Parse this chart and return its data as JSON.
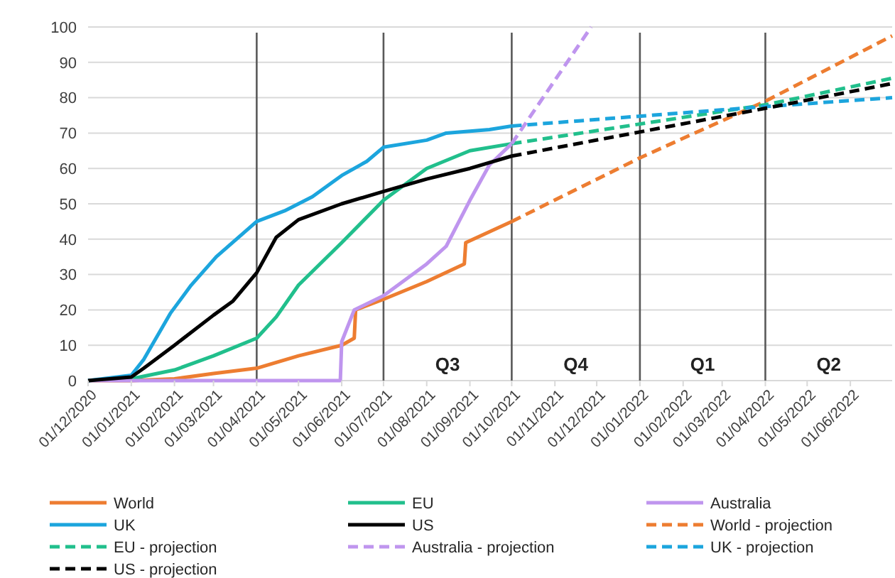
{
  "chart_data": {
    "type": "line",
    "xlim": [
      "2020-12-01",
      "2022-07-01"
    ],
    "ylim": [
      0,
      100
    ],
    "yticks": [
      0,
      10,
      20,
      30,
      40,
      50,
      60,
      70,
      80,
      90,
      100
    ],
    "xticks": [
      {
        "value": "2020-12-01",
        "label": "01/12/2020"
      },
      {
        "value": "2021-01-01",
        "label": "01/01/2021"
      },
      {
        "value": "2021-02-01",
        "label": "01/02/2021"
      },
      {
        "value": "2021-03-01",
        "label": "01/03/2021"
      },
      {
        "value": "2021-04-01",
        "label": "01/04/2021"
      },
      {
        "value": "2021-05-01",
        "label": "01/05/2021"
      },
      {
        "value": "2021-06-01",
        "label": "01/06/2021"
      },
      {
        "value": "2021-07-01",
        "label": "01/07/2021"
      },
      {
        "value": "2021-08-01",
        "label": "01/08/2021"
      },
      {
        "value": "2021-09-01",
        "label": "01/09/2021"
      },
      {
        "value": "2021-10-01",
        "label": "01/10/2021"
      },
      {
        "value": "2021-11-01",
        "label": "01/11/2021"
      },
      {
        "value": "2021-12-01",
        "label": "01/12/2021"
      },
      {
        "value": "2022-01-01",
        "label": "01/01/2022"
      },
      {
        "value": "2022-02-01",
        "label": "01/02/2022"
      },
      {
        "value": "2022-03-01",
        "label": "01/03/2022"
      },
      {
        "value": "2022-04-01",
        "label": "01/04/2022"
      },
      {
        "value": "2022-05-01",
        "label": "01/05/2022"
      },
      {
        "value": "2022-06-01",
        "label": "01/06/2022"
      }
    ],
    "grid": "y",
    "legend": "bottom",
    "line_style": "solid",
    "series": [
      {
        "name": "World",
        "color": "#ed7d31",
        "x": [
          "2020-12-01",
          "2021-01-01",
          "2021-02-01",
          "2021-03-01",
          "2021-04-01",
          "2021-05-01",
          "2021-06-01",
          "2021-06-10",
          "2021-06-11",
          "2021-07-01",
          "2021-08-01",
          "2021-08-28",
          "2021-08-29",
          "2021-10-01"
        ],
        "values": [
          0,
          0,
          0.5,
          2,
          3.5,
          7,
          10,
          12,
          20,
          23,
          28,
          33,
          39,
          45
        ]
      },
      {
        "name": "EU",
        "color": "#21bf8c",
        "x": [
          "2020-12-01",
          "2021-01-01",
          "2021-02-01",
          "2021-03-01",
          "2021-04-01",
          "2021-04-15",
          "2021-05-01",
          "2021-06-01",
          "2021-07-01",
          "2021-08-01",
          "2021-09-01",
          "2021-10-01"
        ],
        "values": [
          0,
          0.5,
          3,
          7,
          12,
          18,
          27,
          39,
          51,
          60,
          65,
          67
        ]
      },
      {
        "name": "Australia",
        "color": "#bf95ee",
        "x": [
          "2020-12-01",
          "2021-05-31",
          "2021-06-01",
          "2021-06-10",
          "2021-07-01",
          "2021-08-01",
          "2021-08-15",
          "2021-09-01",
          "2021-09-15",
          "2021-10-01"
        ],
        "values": [
          0,
          0,
          11,
          20,
          24,
          33,
          38,
          51,
          61,
          67
        ]
      },
      {
        "name": "UK",
        "color": "#1ca5dd",
        "x": [
          "2020-12-01",
          "2021-01-01",
          "2021-01-10",
          "2021-01-29",
          "2021-02-13",
          "2021-03-03",
          "2021-04-01",
          "2021-04-21",
          "2021-05-11",
          "2021-06-01",
          "2021-06-19",
          "2021-07-01",
          "2021-08-01",
          "2021-08-15",
          "2021-09-15",
          "2021-10-01"
        ],
        "values": [
          0,
          1.5,
          6,
          19,
          27,
          35,
          45,
          48,
          52,
          58,
          62,
          66,
          68,
          70,
          71,
          72
        ]
      },
      {
        "name": "US",
        "color": "#000000",
        "x": [
          "2020-12-01",
          "2021-01-01",
          "2021-01-10",
          "2021-02-01",
          "2021-03-01",
          "2021-03-15",
          "2021-04-01",
          "2021-04-15",
          "2021-05-01",
          "2021-06-01",
          "2021-07-01",
          "2021-08-01",
          "2021-09-01",
          "2021-10-01"
        ],
        "values": [
          0,
          1,
          3.5,
          10,
          18.5,
          22.5,
          30.5,
          40.5,
          45.5,
          50,
          53.5,
          57,
          60,
          63.5
        ]
      },
      {
        "name": "World - projection",
        "color": "#ed7d31",
        "line_style": "dashed",
        "x": [
          "2021-10-01",
          "2022-01-01",
          "2022-04-01",
          "2022-07-01"
        ],
        "values": [
          45,
          63,
          79,
          97.5
        ]
      },
      {
        "name": "EU - projection",
        "color": "#21bf8c",
        "line_style": "dashed",
        "x": [
          "2021-10-01",
          "2022-04-01",
          "2022-07-01"
        ],
        "values": [
          67,
          78,
          85.5
        ]
      },
      {
        "name": "Australia - projection",
        "color": "#bf95ee",
        "line_style": "dashed",
        "x": [
          "2021-10-01",
          "2021-11-27"
        ],
        "values": [
          67,
          100
        ]
      },
      {
        "name": "UK - projection",
        "color": "#1ca5dd",
        "line_style": "dashed",
        "x": [
          "2021-10-01",
          "2022-04-01",
          "2022-07-01"
        ],
        "values": [
          72,
          77.5,
          80
        ]
      },
      {
        "name": "US - projection",
        "color": "#000000",
        "line_style": "dashed",
        "x": [
          "2021-10-01",
          "2022-04-01",
          "2022-07-01"
        ],
        "values": [
          63.5,
          77,
          84
        ]
      }
    ],
    "ref_lines": [
      {
        "axis": "x",
        "value": "2021-04-01",
        "color": "#595959"
      },
      {
        "axis": "x",
        "value": "2021-07-01",
        "color": "#595959"
      },
      {
        "axis": "x",
        "value": "2021-10-01",
        "color": "#595959"
      },
      {
        "axis": "x",
        "value": "2022-01-01",
        "color": "#595959"
      },
      {
        "axis": "x",
        "value": "2022-04-01",
        "color": "#595959"
      }
    ],
    "annotations": [
      "Q3",
      "Q4",
      "Q1",
      "Q2"
    ]
  }
}
